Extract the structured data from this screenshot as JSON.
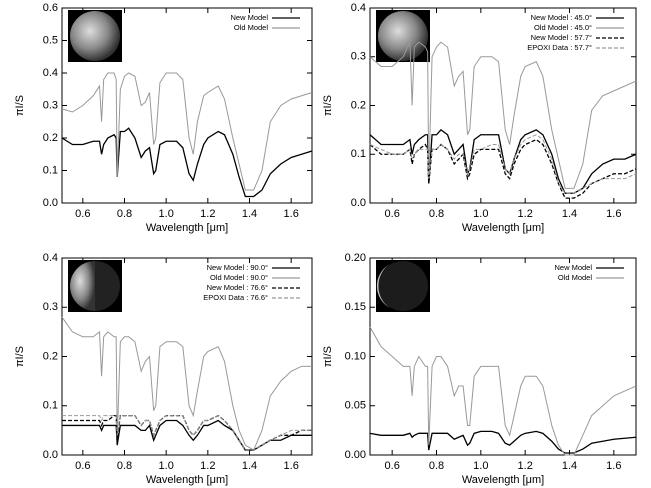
{
  "chart_data": [
    {
      "type": "line",
      "xlabel": "Wavelength [μm]",
      "ylabel": "πI/S",
      "xlim": [
        0.5,
        1.7
      ],
      "xticks": [
        0.6,
        0.8,
        {
          "value": 1,
          "label": "1.0"
        },
        1.2,
        1.4,
        1.6
      ],
      "ylim": [
        0,
        0.6
      ],
      "yticks": [
        {
          "value": 0,
          "label": "0.0"
        },
        0.1,
        0.2,
        0.3,
        0.4,
        0.5,
        0.6
      ],
      "legend": "upper right",
      "x": [
        0.5,
        0.55,
        0.6,
        0.65,
        0.68,
        0.69,
        0.7,
        0.72,
        0.75,
        0.76,
        0.765,
        0.78,
        0.8,
        0.82,
        0.85,
        0.88,
        0.9,
        0.92,
        0.94,
        0.95,
        0.97,
        1.0,
        1.05,
        1.08,
        1.11,
        1.13,
        1.15,
        1.18,
        1.2,
        1.25,
        1.28,
        1.32,
        1.35,
        1.38,
        1.42,
        1.46,
        1.5,
        1.55,
        1.6,
        1.65,
        1.7
      ],
      "series": [
        {
          "name": "New Model",
          "color": "#000000",
          "line_style": "solid",
          "values": [
            0.2,
            0.18,
            0.18,
            0.19,
            0.19,
            0.15,
            0.18,
            0.2,
            0.21,
            0.2,
            0.08,
            0.22,
            0.22,
            0.23,
            0.2,
            0.14,
            0.16,
            0.17,
            0.09,
            0.1,
            0.18,
            0.19,
            0.19,
            0.17,
            0.09,
            0.07,
            0.12,
            0.18,
            0.2,
            0.22,
            0.21,
            0.15,
            0.08,
            0.02,
            0.02,
            0.04,
            0.09,
            0.12,
            0.14,
            0.15,
            0.16
          ]
        },
        {
          "name": "Old Model",
          "color": "#999999",
          "line_style": "solid",
          "values": [
            0.29,
            0.28,
            0.3,
            0.33,
            0.36,
            0.25,
            0.38,
            0.4,
            0.4,
            0.38,
            0.08,
            0.35,
            0.39,
            0.4,
            0.39,
            0.3,
            0.31,
            0.34,
            0.18,
            0.2,
            0.37,
            0.4,
            0.4,
            0.38,
            0.2,
            0.15,
            0.25,
            0.33,
            0.34,
            0.36,
            0.32,
            0.2,
            0.12,
            0.04,
            0.04,
            0.1,
            0.25,
            0.3,
            0.32,
            0.33,
            0.34
          ]
        }
      ]
    },
    {
      "type": "line",
      "xlabel": "Wavelength [μm]",
      "ylabel": "πI/S",
      "xlim": [
        0.5,
        1.7
      ],
      "xticks": [
        0.6,
        0.8,
        {
          "value": 1,
          "label": "1.0"
        },
        1.2,
        1.4,
        1.6
      ],
      "ylim": [
        0,
        0.4
      ],
      "yticks": [
        {
          "value": 0,
          "label": "0.0"
        },
        0.1,
        0.2,
        0.3,
        0.4
      ],
      "legend": "upper right",
      "x": [
        0.5,
        0.55,
        0.6,
        0.65,
        0.68,
        0.69,
        0.7,
        0.72,
        0.75,
        0.76,
        0.765,
        0.78,
        0.8,
        0.82,
        0.85,
        0.88,
        0.9,
        0.92,
        0.94,
        0.95,
        0.97,
        1.0,
        1.05,
        1.08,
        1.11,
        1.13,
        1.15,
        1.18,
        1.2,
        1.25,
        1.28,
        1.32,
        1.35,
        1.38,
        1.42,
        1.46,
        1.5,
        1.55,
        1.6,
        1.65,
        1.7
      ],
      "series": [
        {
          "name": "New Model   : 45.0°",
          "color": "#000000",
          "line_style": "solid",
          "values": [
            0.14,
            0.12,
            0.12,
            0.12,
            0.13,
            0.1,
            0.12,
            0.13,
            0.14,
            0.14,
            0.04,
            0.14,
            0.14,
            0.15,
            0.14,
            0.1,
            0.11,
            0.12,
            0.06,
            0.07,
            0.13,
            0.14,
            0.14,
            0.14,
            0.07,
            0.06,
            0.09,
            0.13,
            0.14,
            0.15,
            0.14,
            0.1,
            0.05,
            0.02,
            0.02,
            0.03,
            0.06,
            0.08,
            0.09,
            0.09,
            0.1
          ]
        },
        {
          "name": "Old Model   : 45.0°",
          "color": "#999999",
          "line_style": "solid",
          "values": [
            0.3,
            0.28,
            0.28,
            0.3,
            0.33,
            0.2,
            0.32,
            0.33,
            0.32,
            0.31,
            0.05,
            0.3,
            0.32,
            0.33,
            0.32,
            0.24,
            0.26,
            0.27,
            0.14,
            0.15,
            0.28,
            0.3,
            0.3,
            0.29,
            0.15,
            0.12,
            0.18,
            0.26,
            0.28,
            0.29,
            0.26,
            0.15,
            0.09,
            0.03,
            0.03,
            0.08,
            0.19,
            0.22,
            0.23,
            0.24,
            0.25
          ]
        },
        {
          "name": "New Model   : 57.7°",
          "color": "#000000",
          "line_style": "dashed",
          "values": [
            0.12,
            0.1,
            0.1,
            0.1,
            0.11,
            0.08,
            0.1,
            0.11,
            0.12,
            0.11,
            0.04,
            0.11,
            0.11,
            0.12,
            0.11,
            0.08,
            0.09,
            0.1,
            0.05,
            0.06,
            0.1,
            0.11,
            0.11,
            0.11,
            0.06,
            0.05,
            0.08,
            0.11,
            0.12,
            0.13,
            0.12,
            0.08,
            0.04,
            0.01,
            0.01,
            0.02,
            0.04,
            0.05,
            0.06,
            0.06,
            0.07
          ]
        },
        {
          "name": "EPOXI Data : 57.7°",
          "color": "#999999",
          "line_style": "dashed",
          "values": [
            0.12,
            0.11,
            0.1,
            0.1,
            0.11,
            0.09,
            0.1,
            0.11,
            0.11,
            0.11,
            0.05,
            0.11,
            0.11,
            0.12,
            0.11,
            0.09,
            0.1,
            0.1,
            0.06,
            0.07,
            0.11,
            0.11,
            0.12,
            0.12,
            0.07,
            0.06,
            0.09,
            0.12,
            0.13,
            0.14,
            0.13,
            0.09,
            0.04,
            0.02,
            0.02,
            0.03,
            0.04,
            0.05,
            0.05,
            0.05,
            0.06
          ]
        }
      ]
    },
    {
      "type": "line",
      "xlabel": "Wavelength [μm]",
      "ylabel": "πI/S",
      "xlim": [
        0.5,
        1.7
      ],
      "xticks": [
        0.6,
        0.8,
        {
          "value": 1,
          "label": "1.0"
        },
        1.2,
        1.4,
        1.6
      ],
      "ylim": [
        0,
        0.4
      ],
      "yticks": [
        {
          "value": 0,
          "label": "0.0"
        },
        0.1,
        0.2,
        0.3,
        0.4
      ],
      "legend": "upper right",
      "x": [
        0.5,
        0.55,
        0.6,
        0.65,
        0.68,
        0.69,
        0.7,
        0.72,
        0.75,
        0.76,
        0.765,
        0.78,
        0.8,
        0.82,
        0.85,
        0.88,
        0.9,
        0.92,
        0.94,
        0.95,
        0.97,
        1.0,
        1.05,
        1.08,
        1.11,
        1.13,
        1.15,
        1.18,
        1.2,
        1.25,
        1.28,
        1.32,
        1.35,
        1.38,
        1.42,
        1.46,
        1.5,
        1.55,
        1.6,
        1.65,
        1.7
      ],
      "series": [
        {
          "name": "New Model   : 90.0°",
          "color": "#000000",
          "line_style": "solid",
          "values": [
            0.06,
            0.06,
            0.06,
            0.06,
            0.06,
            0.05,
            0.06,
            0.06,
            0.06,
            0.06,
            0.02,
            0.06,
            0.06,
            0.06,
            0.06,
            0.05,
            0.05,
            0.06,
            0.03,
            0.04,
            0.06,
            0.07,
            0.07,
            0.06,
            0.04,
            0.03,
            0.04,
            0.06,
            0.06,
            0.07,
            0.06,
            0.05,
            0.03,
            0.01,
            0.01,
            0.02,
            0.03,
            0.03,
            0.04,
            0.04,
            0.04
          ]
        },
        {
          "name": "Old Model   : 90.0°",
          "color": "#999999",
          "line_style": "solid",
          "values": [
            0.28,
            0.25,
            0.24,
            0.24,
            0.25,
            0.16,
            0.24,
            0.25,
            0.24,
            0.24,
            0.03,
            0.23,
            0.24,
            0.24,
            0.23,
            0.17,
            0.19,
            0.2,
            0.09,
            0.1,
            0.22,
            0.23,
            0.23,
            0.22,
            0.1,
            0.08,
            0.13,
            0.2,
            0.21,
            0.22,
            0.19,
            0.1,
            0.05,
            0.02,
            0.01,
            0.05,
            0.12,
            0.15,
            0.17,
            0.18,
            0.18
          ]
        },
        {
          "name": "New Model   : 76.6°",
          "color": "#000000",
          "line_style": "dashed",
          "values": [
            0.07,
            0.07,
            0.07,
            0.07,
            0.07,
            0.06,
            0.07,
            0.07,
            0.08,
            0.08,
            0.03,
            0.08,
            0.08,
            0.08,
            0.08,
            0.06,
            0.07,
            0.07,
            0.04,
            0.05,
            0.07,
            0.08,
            0.08,
            0.08,
            0.05,
            0.04,
            0.05,
            0.07,
            0.07,
            0.08,
            0.07,
            0.05,
            0.03,
            0.01,
            0.01,
            0.02,
            0.03,
            0.04,
            0.04,
            0.05,
            0.05
          ]
        },
        {
          "name": "EPOXI Data : 76.6°",
          "color": "#999999",
          "line_style": "dashed",
          "values": [
            0.08,
            0.08,
            0.08,
            0.08,
            0.08,
            0.07,
            0.08,
            0.08,
            0.08,
            0.08,
            0.04,
            0.08,
            0.08,
            0.08,
            0.08,
            0.06,
            0.07,
            0.07,
            0.04,
            0.05,
            0.07,
            0.08,
            0.08,
            0.08,
            0.05,
            0.04,
            0.05,
            0.07,
            0.07,
            0.08,
            0.07,
            0.05,
            0.03,
            0.01,
            0.01,
            0.02,
            0.03,
            0.04,
            0.05,
            0.05,
            0.05
          ]
        }
      ]
    },
    {
      "type": "line",
      "xlabel": "Wavelength [μm]",
      "ylabel": "πI/S",
      "xlim": [
        0.5,
        1.7
      ],
      "xticks": [
        0.6,
        0.8,
        {
          "value": 1,
          "label": "1.0"
        },
        1.2,
        1.4,
        1.6
      ],
      "ylim": [
        0,
        0.2
      ],
      "yticks": [
        {
          "value": 0,
          "label": "0.00"
        },
        0.05,
        {
          "value": 0.1,
          "label": "0.10"
        },
        0.15,
        {
          "value": 0.2,
          "label": "0.20"
        }
      ],
      "legend": "upper right",
      "x": [
        0.5,
        0.55,
        0.6,
        0.65,
        0.68,
        0.69,
        0.7,
        0.72,
        0.75,
        0.76,
        0.765,
        0.78,
        0.8,
        0.82,
        0.85,
        0.88,
        0.9,
        0.92,
        0.94,
        0.95,
        0.97,
        1.0,
        1.05,
        1.08,
        1.11,
        1.13,
        1.15,
        1.18,
        1.2,
        1.25,
        1.28,
        1.32,
        1.35,
        1.38,
        1.42,
        1.46,
        1.5,
        1.55,
        1.6,
        1.65,
        1.7
      ],
      "series": [
        {
          "name": "New Model",
          "color": "#000000",
          "line_style": "solid",
          "values": [
            0.022,
            0.02,
            0.02,
            0.02,
            0.022,
            0.018,
            0.02,
            0.022,
            0.022,
            0.022,
            0.005,
            0.022,
            0.022,
            0.022,
            0.022,
            0.016,
            0.018,
            0.02,
            0.01,
            0.012,
            0.022,
            0.024,
            0.024,
            0.022,
            0.012,
            0.01,
            0.014,
            0.02,
            0.022,
            0.024,
            0.022,
            0.014,
            0.006,
            0.002,
            0.002,
            0.006,
            0.012,
            0.014,
            0.016,
            0.017,
            0.018
          ]
        },
        {
          "name": "Old Model",
          "color": "#999999",
          "line_style": "solid",
          "values": [
            0.13,
            0.11,
            0.1,
            0.09,
            0.09,
            0.06,
            0.09,
            0.1,
            0.09,
            0.09,
            0.01,
            0.09,
            0.1,
            0.1,
            0.09,
            0.06,
            0.07,
            0.07,
            0.03,
            0.03,
            0.08,
            0.09,
            0.09,
            0.09,
            0.03,
            0.02,
            0.04,
            0.07,
            0.08,
            0.08,
            0.07,
            0.03,
            0.01,
            0,
            0,
            0.02,
            0.04,
            0.05,
            0.06,
            0.065,
            0.07
          ]
        }
      ]
    }
  ]
}
